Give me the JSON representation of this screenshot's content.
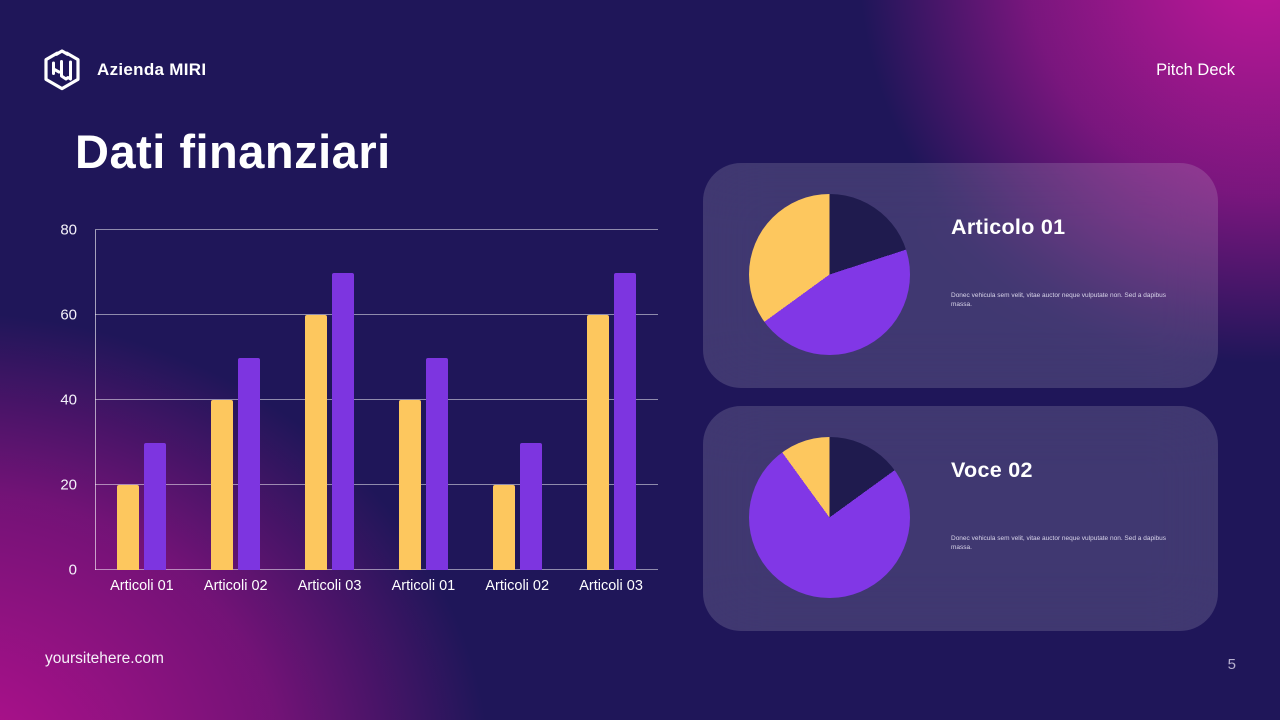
{
  "theme": {
    "background_navy": "#1f1659",
    "accent_magenta": "#c3179b",
    "bar_yellow": "#fdc75e",
    "bar_purple": "#7d35e0",
    "pie_dark_navy": "#1f1b4e",
    "pie_purple": "#8137e6",
    "pie_yellow": "#fdc75e"
  },
  "header": {
    "brand": "Azienda MIRI",
    "logo_icon": "hexagon-cube-logo",
    "deck_label": "Pitch Deck"
  },
  "page_title": "Dati finanziari",
  "footer": {
    "website": "yoursitehere.com",
    "page_number": "5"
  },
  "chart_data": [
    {
      "id": "financial-bar-chart",
      "type": "bar",
      "categories": [
        "Articoli 01",
        "Articoli 02",
        "Articoli 03",
        "Articoli 01",
        "Articoli 02",
        "Articoli 03"
      ],
      "series": [
        {
          "name": "serie-gialla",
          "color": "#fdc75e",
          "values": [
            20,
            40,
            60,
            40,
            20,
            60
          ]
        },
        {
          "name": "serie-viola",
          "color": "#7d35e0",
          "values": [
            30,
            50,
            70,
            50,
            30,
            70
          ]
        }
      ],
      "yticks": [
        0,
        20,
        40,
        60,
        80
      ],
      "ylim": [
        0,
        80
      ],
      "grid": true,
      "legend_position": "none",
      "title": "",
      "xlabel": "",
      "ylabel": ""
    },
    {
      "id": "pie-articolo-01",
      "type": "pie",
      "title": "Articolo 01",
      "description": "Donec vehicula sem velit, vitae auctor neque vulputate non. Sed a dapibus massa.",
      "slices": [
        {
          "label": "slice-navy",
          "value": 20,
          "color": "#1f1b4e"
        },
        {
          "label": "slice-purple",
          "value": 45,
          "color": "#8137e6"
        },
        {
          "label": "slice-yellow",
          "value": 35,
          "color": "#fdc75e"
        }
      ]
    },
    {
      "id": "pie-voce-02",
      "type": "pie",
      "title": "Voce 02",
      "description": "Donec vehicula sem velit, vitae auctor neque vulputate non. Sed a dapibus massa.",
      "slices": [
        {
          "label": "slice-navy",
          "value": 15,
          "color": "#1f1b4e"
        },
        {
          "label": "slice-purple",
          "value": 75,
          "color": "#8137e6"
        },
        {
          "label": "slice-yellow",
          "value": 10,
          "color": "#fdc75e"
        }
      ]
    }
  ]
}
